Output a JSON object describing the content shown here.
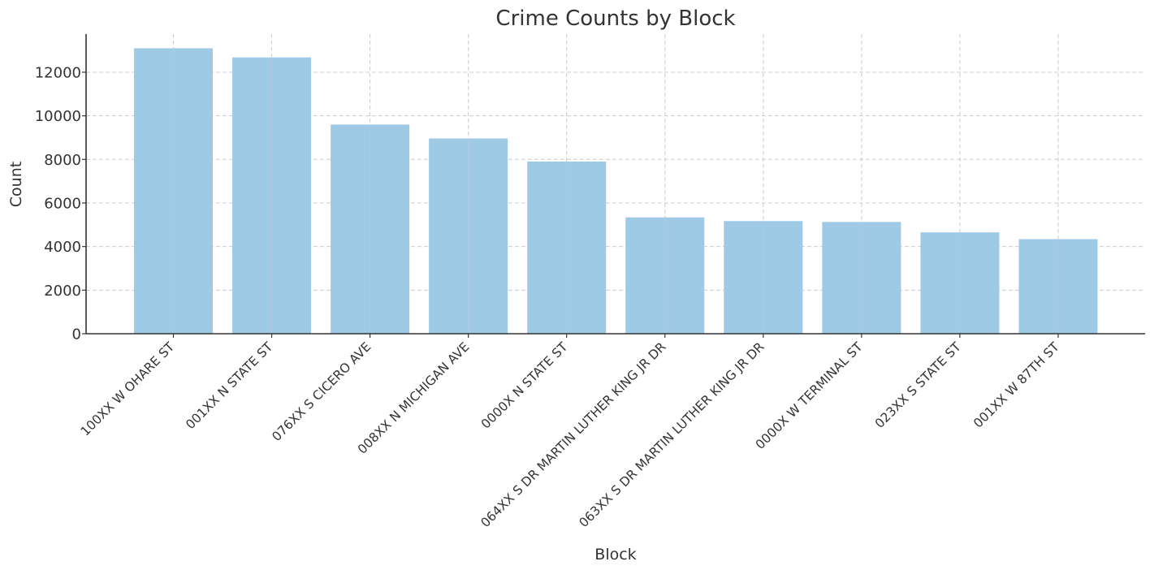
{
  "chart_data": {
    "type": "bar",
    "title": "Crime Counts by Block",
    "xlabel": "Block",
    "ylabel": "Count",
    "categories": [
      "100XX W OHARE ST",
      "001XX N STATE ST",
      "076XX S CICERO AVE",
      "008XX N MICHIGAN AVE",
      "0000X N STATE ST",
      "064XX S DR MARTIN LUTHER KING JR DR",
      "063XX S DR MARTIN LUTHER KING JR DR",
      "0000X W TERMINAL ST",
      "023XX S STATE ST",
      "001XX W 87TH ST"
    ],
    "values": [
      13100,
      12680,
      9600,
      8960,
      7900,
      5340,
      5170,
      5130,
      4650,
      4340
    ],
    "ylim": [
      0,
      13750
    ],
    "yticks": [
      0,
      2000,
      4000,
      6000,
      8000,
      10000,
      12000
    ],
    "grid": true,
    "bar_color": "#9ecae6",
    "x_tick_rotation": 45
  }
}
